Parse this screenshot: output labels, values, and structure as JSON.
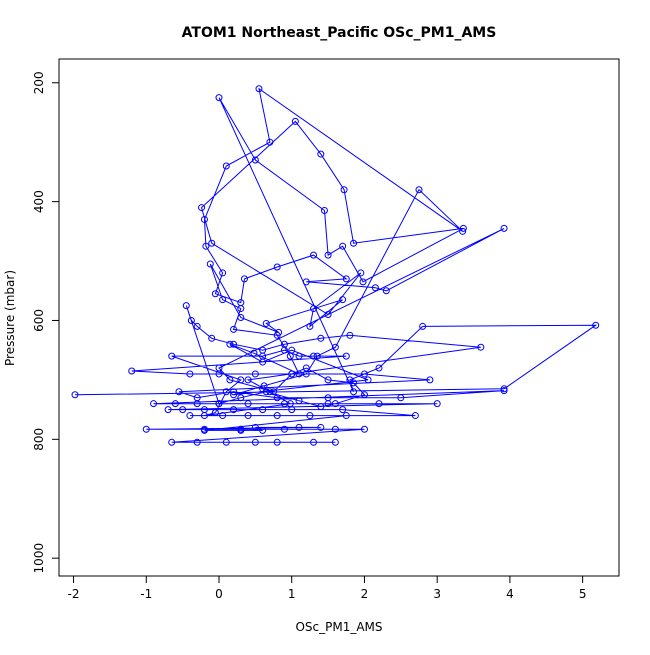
{
  "colors": {
    "series": "#0000ff",
    "axis": "#000000",
    "background": "#ffffff"
  },
  "chart_data": {
    "type": "line",
    "title": "ATOM1 Northeast_Pacific OSc_PM1_AMS",
    "xlabel": "OSc_PM1_AMS",
    "ylabel": "Pressure (mbar)",
    "xlim": [
      -2.2,
      5.5
    ],
    "ylim": [
      1030,
      160
    ],
    "y_reversed": true,
    "grid": false,
    "legend": "none",
    "marker": "open-circle",
    "x_ticks": [
      -2,
      -1,
      0,
      1,
      2,
      3,
      4,
      5
    ],
    "x_tick_labels": [
      "-2",
      "-1",
      "0",
      "1",
      "2",
      "3",
      "4",
      "5"
    ],
    "y_ticks": [
      200,
      400,
      600,
      800,
      1000
    ],
    "y_tick_labels": [
      "200",
      "400",
      "600",
      "800",
      "1000"
    ],
    "x": [
      -1.98,
      3.92,
      5.18,
      2.8,
      2.2,
      1.8,
      1.85,
      0.0,
      0.5,
      1.45,
      1.5,
      1.7,
      1.98,
      3.36,
      1.85,
      1.72,
      1.4,
      1.05,
      -0.24,
      -0.1,
      1.5,
      1.95,
      1.3,
      1.25,
      1.7,
      0.65,
      0.82,
      0.3,
      -0.12,
      0.05,
      0.3,
      0.2,
      0.8,
      0.98,
      1.1,
      0.48,
      0.15,
      0.6,
      1.0,
      2.05,
      0.2,
      0.62,
      1.2,
      1.35,
      1.6,
      2.75,
      3.35,
      0.55,
      0.7,
      0.1,
      -0.2,
      -0.18,
      0.05,
      -0.05,
      0.3,
      0.35,
      0.8,
      1.3,
      1.75,
      1.2,
      2.15,
      2.3,
      3.92,
      0.0,
      0.15,
      0.6,
      0.75,
      1.0,
      1.2,
      1.5,
      1.85,
      2.0,
      1.6,
      1.4,
      1.1,
      0.65,
      0.3,
      0.0,
      -0.45,
      -0.38,
      -0.3,
      -0.1,
      0.2,
      0.6,
      0.9,
      1.4,
      1.8,
      3.6,
      0.4,
      0.7,
      0.98,
      -0.2,
      -0.05,
      0.1,
      0.3,
      -0.65,
      0.6,
      0.9,
      1.1,
      1.3,
      1.75,
      -1.2,
      -0.4,
      0.0,
      0.5,
      1.0,
      2.0,
      2.9,
      -0.55,
      -0.3,
      0.2,
      0.8,
      1.5,
      2.5,
      3.92,
      -0.9,
      -0.6,
      -0.3,
      0.0,
      0.4,
      0.9,
      1.5,
      2.2,
      3.0,
      -0.7,
      -0.5,
      -0.2,
      0.2,
      0.6,
      1.0,
      1.7,
      2.7,
      -0.4,
      0.05,
      0.4,
      0.8,
      1.25,
      1.75,
      -0.2,
      0.3,
      0.6,
      0.5,
      1.1,
      1.4,
      -1.0,
      -0.2,
      0.3,
      0.9,
      1.6,
      2.0,
      -0.65,
      -0.3,
      0.1,
      0.5,
      0.8,
      1.3,
      1.6
    ],
    "y": [
      725,
      715,
      608,
      610,
      680,
      700,
      720,
      225,
      330,
      415,
      490,
      475,
      535,
      445,
      470,
      380,
      320,
      265,
      410,
      470,
      590,
      520,
      580,
      610,
      565,
      605,
      620,
      595,
      505,
      565,
      580,
      615,
      625,
      660,
      690,
      655,
      640,
      670,
      650,
      700,
      725,
      710,
      690,
      660,
      645,
      380,
      450,
      210,
      300,
      340,
      430,
      475,
      520,
      555,
      570,
      530,
      510,
      490,
      530,
      535,
      545,
      550,
      445,
      680,
      700,
      715,
      720,
      690,
      680,
      700,
      705,
      725,
      740,
      745,
      735,
      720,
      730,
      740,
      575,
      600,
      610,
      630,
      640,
      650,
      640,
      630,
      625,
      645,
      700,
      720,
      740,
      760,
      755,
      720,
      700,
      660,
      660,
      650,
      660,
      660,
      660,
      685,
      690,
      690,
      690,
      690,
      690,
      700,
      720,
      730,
      720,
      730,
      730,
      730,
      718,
      740,
      740,
      740,
      740,
      740,
      740,
      740,
      740,
      740,
      750,
      750,
      750,
      750,
      750,
      750,
      750,
      760,
      760,
      760,
      760,
      760,
      760,
      760,
      785,
      785,
      785,
      780,
      780,
      780,
      783,
      783,
      783,
      783,
      783,
      783,
      805,
      805,
      805,
      805,
      805,
      805,
      805
    ]
  }
}
